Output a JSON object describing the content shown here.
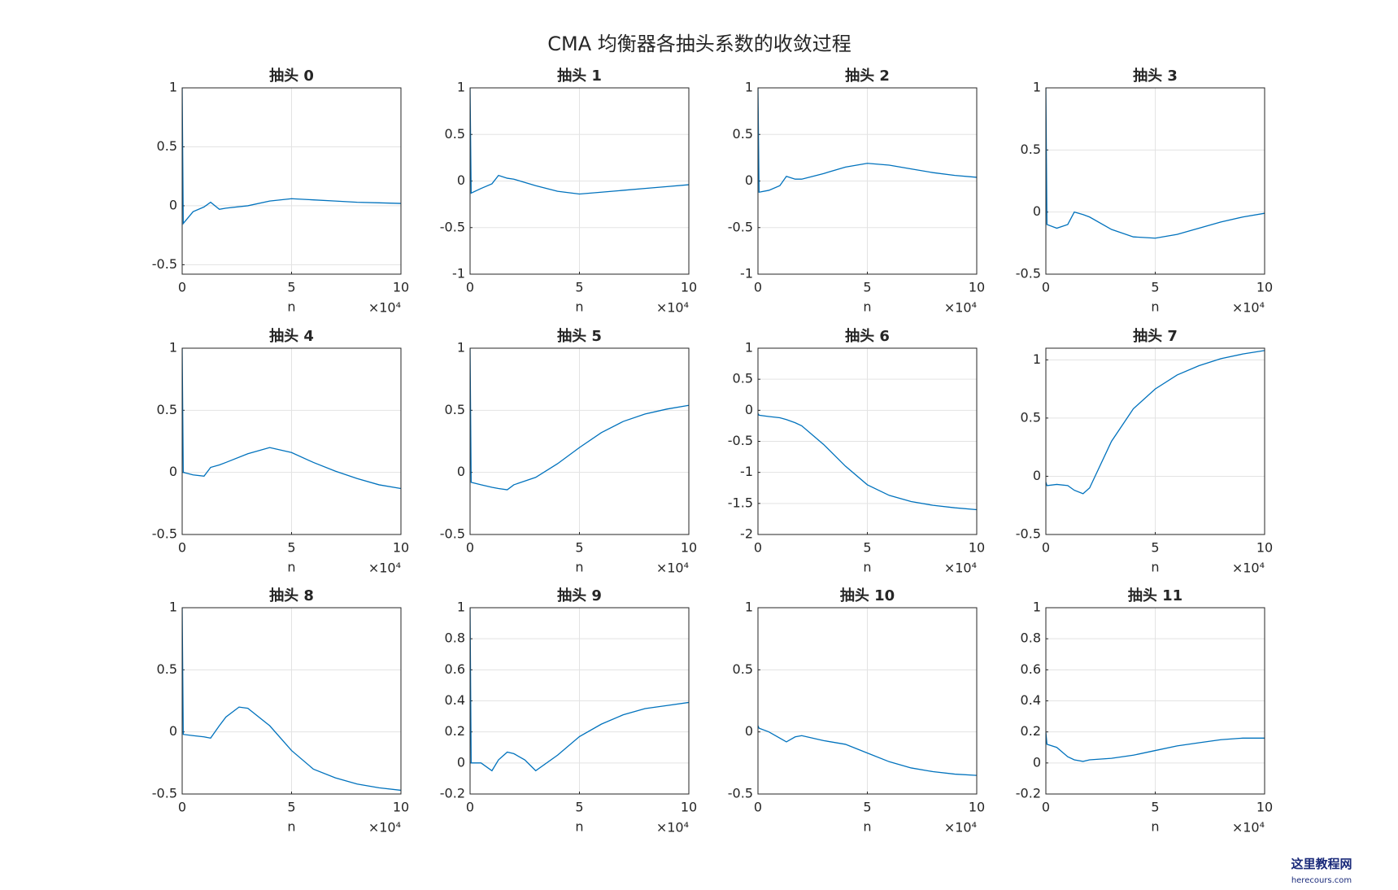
{
  "title": "CMA 均衡器各抽头系数的收敛过程",
  "watermark": {
    "name": "这里教程网",
    "url": "herecours.com"
  },
  "chart_data": [
    {
      "type": "line",
      "title": "抽头 0",
      "xlabel": "n",
      "x_multiplier": "×10⁴",
      "color": "#0072bd",
      "grid": true,
      "x": [
        0,
        0.05,
        0.5,
        1,
        1.3,
        1.7,
        2,
        3,
        4,
        5,
        6,
        7,
        8,
        9,
        10
      ],
      "values": [
        1,
        -0.15,
        -0.05,
        -0.01,
        0.03,
        -0.03,
        -0.02,
        0.0,
        0.04,
        0.06,
        0.05,
        0.04,
        0.03,
        0.025,
        0.02
      ],
      "xlim": [
        0,
        10
      ],
      "xticks": [
        0,
        5,
        10
      ],
      "ylim": [
        -0.58,
        1
      ],
      "yticks": [
        -0.5,
        0,
        0.5,
        1
      ]
    },
    {
      "type": "line",
      "title": "抽头 1",
      "xlabel": "n",
      "x_multiplier": "×10⁴",
      "color": "#0072bd",
      "grid": true,
      "x": [
        0,
        0.05,
        0.5,
        1,
        1.3,
        1.7,
        2,
        3,
        4,
        5,
        6,
        7,
        8,
        9,
        10
      ],
      "values": [
        1,
        -0.13,
        -0.08,
        -0.03,
        0.06,
        0.03,
        0.02,
        -0.05,
        -0.11,
        -0.14,
        -0.12,
        -0.1,
        -0.08,
        -0.06,
        -0.04
      ],
      "xlim": [
        0,
        10
      ],
      "xticks": [
        0,
        5,
        10
      ],
      "ylim": [
        -1,
        1
      ],
      "yticks": [
        -1,
        -0.5,
        0,
        0.5,
        1
      ]
    },
    {
      "type": "line",
      "title": "抽头 2",
      "xlabel": "n",
      "x_multiplier": "×10⁴",
      "color": "#0072bd",
      "grid": true,
      "x": [
        0,
        0.05,
        0.5,
        1,
        1.3,
        1.7,
        2,
        3,
        4,
        5,
        6,
        7,
        8,
        9,
        10
      ],
      "values": [
        1,
        -0.12,
        -0.1,
        -0.05,
        0.05,
        0.02,
        0.02,
        0.08,
        0.15,
        0.19,
        0.17,
        0.13,
        0.09,
        0.06,
        0.04
      ],
      "xlim": [
        0,
        10
      ],
      "xticks": [
        0,
        5,
        10
      ],
      "ylim": [
        -1,
        1
      ],
      "yticks": [
        -1,
        -0.5,
        0,
        0.5,
        1
      ]
    },
    {
      "type": "line",
      "title": "抽头 3",
      "xlabel": "n",
      "x_multiplier": "×10⁴",
      "color": "#0072bd",
      "grid": true,
      "x": [
        0,
        0.05,
        0.5,
        1,
        1.3,
        1.7,
        2,
        3,
        4,
        5,
        6,
        7,
        8,
        9,
        10
      ],
      "values": [
        1,
        -0.1,
        -0.13,
        -0.1,
        0.0,
        -0.02,
        -0.04,
        -0.14,
        -0.2,
        -0.21,
        -0.18,
        -0.13,
        -0.08,
        -0.04,
        -0.01
      ],
      "xlim": [
        0,
        10
      ],
      "xticks": [
        0,
        5,
        10
      ],
      "ylim": [
        -0.5,
        1
      ],
      "yticks": [
        -0.5,
        0,
        0.5,
        1
      ]
    },
    {
      "type": "line",
      "title": "抽头 4",
      "xlabel": "n",
      "x_multiplier": "×10⁴",
      "color": "#0072bd",
      "grid": true,
      "x": [
        0,
        0.05,
        0.5,
        1,
        1.3,
        1.7,
        2,
        3,
        4,
        5,
        6,
        7,
        8,
        9,
        10
      ],
      "values": [
        1,
        0.0,
        -0.02,
        -0.03,
        0.04,
        0.06,
        0.08,
        0.15,
        0.2,
        0.16,
        0.08,
        0.01,
        -0.05,
        -0.1,
        -0.13
      ],
      "xlim": [
        0,
        10
      ],
      "xticks": [
        0,
        5,
        10
      ],
      "ylim": [
        -0.5,
        1
      ],
      "yticks": [
        -0.5,
        0,
        0.5,
        1
      ]
    },
    {
      "type": "line",
      "title": "抽头 5",
      "xlabel": "n",
      "x_multiplier": "×10⁴",
      "color": "#0072bd",
      "grid": true,
      "x": [
        0,
        0.05,
        0.5,
        1,
        1.3,
        1.7,
        2,
        3,
        4,
        5,
        6,
        7,
        8,
        9,
        10
      ],
      "values": [
        1,
        -0.08,
        -0.1,
        -0.12,
        -0.13,
        -0.14,
        -0.1,
        -0.04,
        0.07,
        0.2,
        0.32,
        0.41,
        0.47,
        0.51,
        0.54
      ],
      "xlim": [
        0,
        10
      ],
      "xticks": [
        0,
        5,
        10
      ],
      "ylim": [
        -0.5,
        1
      ],
      "yticks": [
        -0.5,
        0,
        0.5,
        1
      ]
    },
    {
      "type": "line",
      "title": "抽头 6",
      "xlabel": "n",
      "x_multiplier": "×10⁴",
      "color": "#0072bd",
      "grid": true,
      "x": [
        0,
        0.05,
        0.5,
        1,
        1.3,
        1.7,
        2,
        3,
        4,
        5,
        6,
        7,
        8,
        9,
        10
      ],
      "values": [
        -0.05,
        -0.08,
        -0.1,
        -0.12,
        -0.15,
        -0.2,
        -0.25,
        -0.55,
        -0.9,
        -1.2,
        -1.37,
        -1.47,
        -1.53,
        -1.57,
        -1.6
      ],
      "xlim": [
        0,
        10
      ],
      "xticks": [
        0,
        5,
        10
      ],
      "ylim": [
        -2,
        1
      ],
      "yticks": [
        -2,
        -1.5,
        -1,
        -0.5,
        0,
        0.5,
        1
      ]
    },
    {
      "type": "line",
      "title": "抽头 7",
      "xlabel": "n",
      "x_multiplier": "×10⁴",
      "color": "#0072bd",
      "grid": true,
      "x": [
        0,
        0.05,
        0.5,
        1,
        1.3,
        1.7,
        2,
        3,
        4,
        5,
        6,
        7,
        8,
        9,
        10
      ],
      "values": [
        -0.05,
        -0.08,
        -0.07,
        -0.08,
        -0.12,
        -0.15,
        -0.1,
        0.3,
        0.58,
        0.75,
        0.87,
        0.95,
        1.01,
        1.05,
        1.08
      ],
      "xlim": [
        0,
        10
      ],
      "xticks": [
        0,
        5,
        10
      ],
      "ylim": [
        -0.5,
        1.1
      ],
      "yticks": [
        -0.5,
        0,
        0.5,
        1
      ]
    },
    {
      "type": "line",
      "title": "抽头 8",
      "xlabel": "n",
      "x_multiplier": "×10⁴",
      "color": "#0072bd",
      "grid": true,
      "x": [
        0,
        0.05,
        0.5,
        1,
        1.3,
        1.7,
        2,
        2.6,
        3,
        4,
        5,
        6,
        7,
        8,
        9,
        10
      ],
      "values": [
        1,
        -0.02,
        -0.03,
        -0.04,
        -0.05,
        0.05,
        0.12,
        0.2,
        0.19,
        0.05,
        -0.15,
        -0.3,
        -0.37,
        -0.42,
        -0.45,
        -0.47
      ],
      "xlim": [
        0,
        10
      ],
      "xticks": [
        0,
        5,
        10
      ],
      "ylim": [
        -0.5,
        1
      ],
      "yticks": [
        -0.5,
        0,
        0.5,
        1
      ]
    },
    {
      "type": "line",
      "title": "抽头 9",
      "xlabel": "n",
      "x_multiplier": "×10⁴",
      "color": "#0072bd",
      "grid": true,
      "x": [
        0,
        0.05,
        0.5,
        1,
        1.3,
        1.7,
        2,
        2.5,
        3,
        4,
        5,
        6,
        7,
        8,
        9,
        10
      ],
      "values": [
        1,
        0.0,
        0.0,
        -0.05,
        0.02,
        0.07,
        0.06,
        0.02,
        -0.05,
        0.05,
        0.17,
        0.25,
        0.31,
        0.35,
        0.37,
        0.39
      ],
      "xlim": [
        0,
        10
      ],
      "xticks": [
        0,
        5,
        10
      ],
      "ylim": [
        -0.2,
        1
      ],
      "yticks": [
        -0.2,
        0,
        0.2,
        0.4,
        0.6,
        0.8,
        1
      ]
    },
    {
      "type": "line",
      "title": "抽头 10",
      "xlabel": "n",
      "x_multiplier": "×10⁴",
      "color": "#0072bd",
      "grid": true,
      "x": [
        0,
        0.05,
        0.5,
        1,
        1.3,
        1.7,
        2,
        3,
        4,
        5,
        6,
        7,
        8,
        9,
        10
      ],
      "values": [
        0.05,
        0.03,
        0.0,
        -0.05,
        -0.08,
        -0.04,
        -0.03,
        -0.07,
        -0.1,
        -0.17,
        -0.24,
        -0.29,
        -0.32,
        -0.34,
        -0.35
      ],
      "xlim": [
        0,
        10
      ],
      "xticks": [
        0,
        5,
        10
      ],
      "ylim": [
        -0.5,
        1
      ],
      "yticks": [
        -0.5,
        0,
        0.5,
        1
      ]
    },
    {
      "type": "line",
      "title": "抽头 11",
      "xlabel": "n",
      "x_multiplier": "×10⁴",
      "color": "#0072bd",
      "grid": true,
      "x": [
        0,
        0.05,
        0.5,
        1,
        1.3,
        1.7,
        2,
        3,
        4,
        5,
        6,
        7,
        8,
        9,
        10
      ],
      "values": [
        0.2,
        0.12,
        0.1,
        0.04,
        0.02,
        0.01,
        0.02,
        0.03,
        0.05,
        0.08,
        0.11,
        0.13,
        0.15,
        0.16,
        0.16
      ],
      "xlim": [
        0,
        10
      ],
      "xticks": [
        0,
        5,
        10
      ],
      "ylim": [
        -0.2,
        1
      ],
      "yticks": [
        -0.2,
        0,
        0.2,
        0.4,
        0.6,
        0.8,
        1
      ]
    }
  ]
}
